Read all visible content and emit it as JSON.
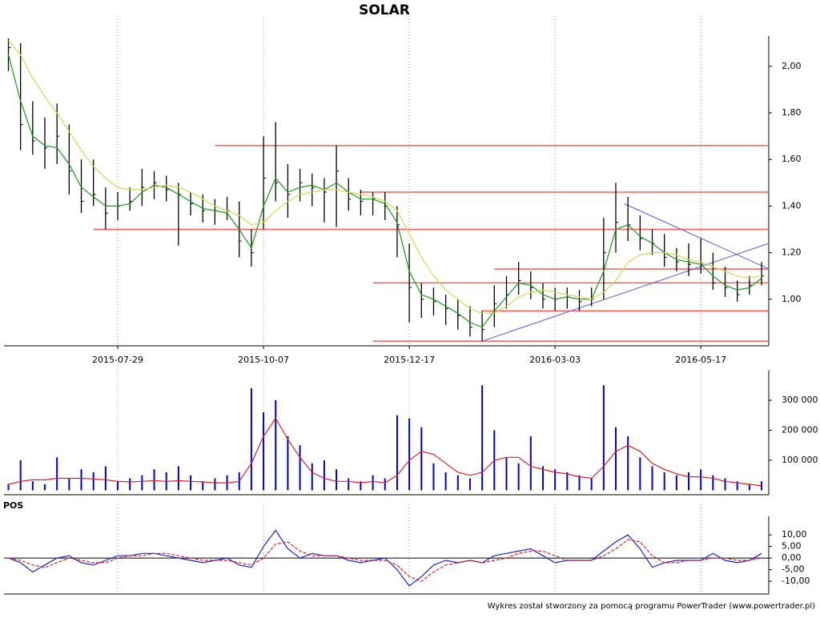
{
  "chart_data": [
    {
      "type": "ohlc",
      "title": "SOLAR",
      "categories": [
        null,
        null,
        null,
        null,
        null,
        null,
        null,
        null,
        null,
        "2015-07-29",
        null,
        null,
        null,
        null,
        null,
        null,
        null,
        null,
        null,
        null,
        null,
        "2015-10-07",
        null,
        null,
        null,
        null,
        null,
        null,
        null,
        null,
        null,
        null,
        null,
        "2015-12-17",
        null,
        null,
        null,
        null,
        null,
        null,
        null,
        null,
        null,
        null,
        null,
        "2016-03-03",
        null,
        null,
        null,
        null,
        null,
        null,
        null,
        null,
        null,
        null,
        null,
        "2016-05-17",
        null,
        null,
        null,
        null,
        null
      ],
      "high": [
        2.12,
        2.1,
        1.85,
        1.78,
        1.84,
        1.75,
        1.6,
        1.6,
        1.48,
        1.46,
        1.48,
        1.56,
        1.55,
        1.53,
        1.5,
        1.46,
        1.45,
        1.43,
        1.44,
        1.42,
        1.3,
        1.7,
        1.76,
        1.58,
        1.56,
        1.54,
        1.52,
        1.66,
        1.52,
        1.47,
        1.46,
        1.46,
        1.4,
        1.24,
        1.07,
        1.05,
        1.02,
        1.0,
        0.97,
        0.95,
        1.06,
        1.1,
        1.16,
        1.12,
        1.07,
        1.05,
        1.05,
        1.04,
        1.05,
        1.35,
        1.5,
        1.44,
        1.36,
        1.3,
        1.28,
        1.22,
        1.24,
        1.26,
        1.2,
        1.14,
        1.08,
        1.1,
        1.16
      ],
      "low": [
        1.98,
        1.64,
        1.62,
        1.56,
        1.58,
        1.45,
        1.37,
        1.4,
        1.3,
        1.34,
        1.38,
        1.4,
        1.43,
        1.42,
        1.23,
        1.36,
        1.33,
        1.32,
        1.34,
        1.18,
        1.14,
        1.3,
        1.42,
        1.35,
        1.42,
        1.4,
        1.33,
        1.31,
        1.38,
        1.36,
        1.36,
        1.34,
        1.18,
        0.9,
        0.92,
        0.93,
        0.89,
        0.87,
        0.84,
        0.82,
        0.88,
        0.96,
        1.02,
        1.0,
        0.96,
        0.95,
        0.96,
        0.95,
        0.97,
        1.0,
        1.2,
        1.25,
        1.21,
        1.19,
        1.14,
        1.12,
        1.1,
        1.11,
        1.04,
        1.01,
        0.99,
        1.02,
        1.06
      ],
      "close": [
        2.08,
        1.75,
        1.68,
        1.65,
        1.7,
        1.55,
        1.42,
        1.45,
        1.37,
        1.4,
        1.42,
        1.48,
        1.5,
        1.47,
        1.45,
        1.41,
        1.38,
        1.38,
        1.38,
        1.25,
        1.2,
        1.52,
        1.5,
        1.45,
        1.5,
        1.48,
        1.46,
        1.55,
        1.43,
        1.42,
        1.43,
        1.4,
        1.32,
        1.05,
        1.0,
        0.99,
        0.96,
        0.93,
        0.88,
        0.87,
        0.98,
        1.02,
        1.08,
        1.05,
        1.0,
        1.0,
        1.01,
        0.99,
        1.0,
        1.2,
        1.33,
        1.32,
        1.26,
        1.24,
        1.18,
        1.16,
        1.15,
        1.15,
        1.07,
        1.05,
        1.02,
        1.06,
        1.1
      ],
      "color": "#000000",
      "series": [
        {
          "color": "#1a9a1a",
          "values": [
            2.05,
            1.85,
            1.7,
            1.66,
            1.65,
            1.58,
            1.48,
            1.44,
            1.4,
            1.4,
            1.41,
            1.46,
            1.49,
            1.48,
            1.45,
            1.42,
            1.39,
            1.38,
            1.37,
            1.3,
            1.22,
            1.4,
            1.52,
            1.46,
            1.48,
            1.49,
            1.47,
            1.5,
            1.46,
            1.43,
            1.43,
            1.41,
            1.33,
            1.12,
            1.02,
            1.0,
            0.97,
            0.94,
            0.9,
            0.88,
            0.95,
            1.01,
            1.07,
            1.06,
            1.02,
            1.0,
            1.01,
            1.0,
            1.0,
            1.12,
            1.3,
            1.32,
            1.27,
            1.24,
            1.2,
            1.17,
            1.16,
            1.15,
            1.1,
            1.06,
            1.04,
            1.05,
            1.09
          ]
        },
        {
          "color": "#d8d850",
          "values": [
            2.11,
            2.05,
            1.95,
            1.87,
            1.8,
            1.72,
            1.64,
            1.57,
            1.52,
            1.48,
            1.47,
            1.47,
            1.48,
            1.49,
            1.48,
            1.46,
            1.43,
            1.4,
            1.38,
            1.36,
            1.32,
            1.33,
            1.38,
            1.42,
            1.45,
            1.46,
            1.47,
            1.47,
            1.46,
            1.45,
            1.44,
            1.42,
            1.38,
            1.28,
            1.18,
            1.1,
            1.04,
            1.0,
            0.96,
            0.94,
            0.94,
            0.97,
            1.01,
            1.03,
            1.04,
            1.03,
            1.02,
            1.01,
            1.0,
            1.03,
            1.08,
            1.16,
            1.19,
            1.2,
            1.2,
            1.19,
            1.17,
            1.16,
            1.14,
            1.12,
            1.1,
            1.09,
            1.1
          ]
        }
      ],
      "hline_color": "#ff5a5a",
      "hlines": [
        {
          "value": 1.66,
          "start": 17
        },
        {
          "value": 1.46,
          "start": 29
        },
        {
          "value": 1.3,
          "start": 7
        },
        {
          "value": 1.13,
          "start": 40
        },
        {
          "value": 1.07,
          "start": 30
        },
        {
          "value": 0.95,
          "start": 39
        },
        {
          "value": 0.82,
          "start": 30
        }
      ],
      "trend_color": "#5a5ae0",
      "trendlines": [
        {
          "start": [
            39,
            0.82
          ],
          "end": [
            62.6,
            1.24
          ]
        },
        {
          "start": [
            50.7,
            1.41
          ],
          "end": [
            62.6,
            1.13
          ]
        }
      ],
      "ylim": [
        0.8,
        2.13
      ],
      "yticks": [
        {
          "value": 1.0,
          "label": "1,00"
        },
        {
          "value": 1.2,
          "label": "1,20"
        },
        {
          "value": 1.4,
          "label": "1,40"
        },
        {
          "value": 1.6,
          "label": "1,60"
        },
        {
          "value": 1.8,
          "label": "1,80"
        },
        {
          "value": 2.0,
          "label": "2,00"
        }
      ],
      "grid": true
    },
    {
      "type": "bar",
      "values": [
        20000,
        100000,
        30000,
        20000,
        110000,
        40000,
        70000,
        60000,
        80000,
        30000,
        40000,
        50000,
        70000,
        60000,
        80000,
        50000,
        30000,
        40000,
        50000,
        60000,
        340000,
        260000,
        300000,
        180000,
        150000,
        90000,
        100000,
        70000,
        40000,
        30000,
        50000,
        40000,
        250000,
        240000,
        210000,
        90000,
        60000,
        50000,
        40000,
        350000,
        200000,
        110000,
        90000,
        180000,
        80000,
        70000,
        60000,
        50000,
        40000,
        350000,
        210000,
        180000,
        110000,
        80000,
        60000,
        50000,
        60000,
        70000,
        50000,
        40000,
        30000,
        20000,
        30000
      ],
      "color": "#0000c8",
      "series": [
        {
          "color": "#e02020",
          "values": [
            20000,
            30000,
            35000,
            35000,
            40000,
            40000,
            40000,
            38000,
            35000,
            30000,
            28000,
            30000,
            32000,
            30000,
            32000,
            30000,
            28000,
            25000,
            25000,
            30000,
            90000,
            180000,
            240000,
            170000,
            110000,
            60000,
            40000,
            30000,
            30000,
            25000,
            30000,
            25000,
            50000,
            100000,
            130000,
            120000,
            90000,
            60000,
            50000,
            60000,
            100000,
            110000,
            110000,
            80000,
            70000,
            60000,
            55000,
            45000,
            40000,
            80000,
            130000,
            150000,
            130000,
            90000,
            70000,
            55000,
            45000,
            45000,
            40000,
            30000,
            25000,
            20000,
            15000
          ]
        }
      ],
      "ylim": [
        0,
        400000
      ],
      "yticks": [
        {
          "value": 100000,
          "label": "100 000"
        },
        {
          "value": 200000,
          "label": "200 000"
        },
        {
          "value": 300000,
          "label": "300 000"
        }
      ],
      "grid": true
    },
    {
      "type": "line",
      "title": "POS",
      "series": [
        {
          "color": "#2020d8",
          "values": [
            0,
            -2,
            -6,
            -3,
            0,
            1,
            -2,
            -3,
            -1,
            1,
            1,
            2,
            2,
            1,
            0,
            -1,
            -2,
            -1,
            0,
            -3,
            -4,
            5,
            12,
            4,
            0,
            2,
            1,
            1,
            -1,
            -2,
            -1,
            0,
            -5,
            -12,
            -8,
            -3,
            -1,
            -2,
            -1,
            -2,
            1,
            2,
            3,
            4,
            1,
            -2,
            -1,
            -1,
            -1,
            3,
            7,
            10,
            4,
            -4,
            -2,
            -1,
            -1,
            -1,
            2,
            -1,
            -2,
            -1,
            2
          ]
        },
        {
          "color": "#e02020",
          "dashed": true,
          "values": [
            0,
            -1,
            -3,
            -4,
            -2,
            0,
            -1,
            -2,
            -2,
            0,
            1,
            1,
            2,
            2,
            1,
            0,
            -1,
            -1,
            -1,
            -2,
            -3,
            0,
            6,
            7,
            3,
            1,
            1,
            1,
            0,
            -1,
            -1,
            -1,
            -3,
            -8,
            -10,
            -6,
            -3,
            -2,
            -1,
            -2,
            -1,
            0,
            2,
            3,
            3,
            1,
            -1,
            -1,
            -1,
            1,
            4,
            8,
            7,
            1,
            -2,
            -2,
            -1,
            -1,
            0,
            0,
            -1,
            -1,
            0
          ]
        }
      ],
      "ylim": [
        -15.5,
        18
      ],
      "yticks": [
        {
          "value": -10,
          "label": "-10,00"
        },
        {
          "value": -5,
          "label": "-5,00"
        },
        {
          "value": 0,
          "label": "0,00"
        },
        {
          "value": 5,
          "label": "5,00"
        },
        {
          "value": 10,
          "label": "10,00"
        }
      ],
      "grid": true
    }
  ],
  "footer": "Wykres został stworzony za pomocą programu PowerTrader (www.powertrader.pl)"
}
